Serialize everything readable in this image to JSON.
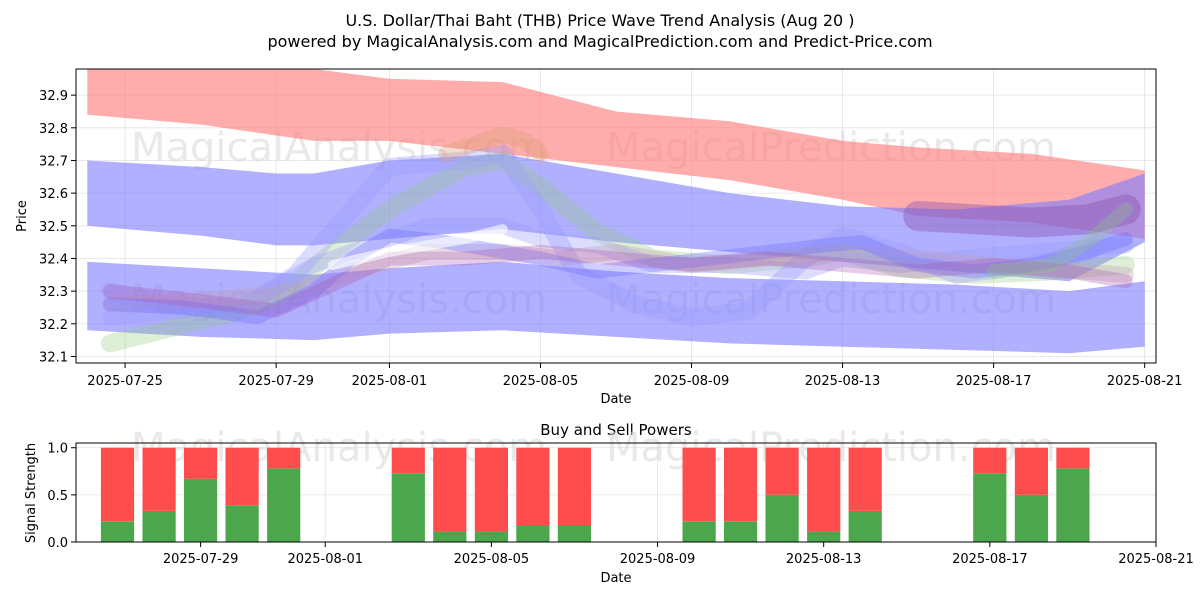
{
  "chart_data": [
    {
      "type": "area",
      "title": "U.S. Dollar/Thai Baht (THB) Price Wave Trend Analysis (Aug 20 )",
      "subtitle": "powered by MagicalAnalysis.com and MagicalPrediction.com and Predict-Price.com",
      "xlabel": "Date",
      "ylabel": "Price",
      "xlim": [
        -1.3,
        27.3
      ],
      "ylim": [
        32.08,
        32.98
      ],
      "x_origin_date": "2025-07-25",
      "xticks": [
        {
          "x": 0,
          "label": "2025-07-25"
        },
        {
          "x": 4,
          "label": "2025-07-29"
        },
        {
          "x": 7,
          "label": "2025-08-01"
        },
        {
          "x": 11,
          "label": "2025-08-05"
        },
        {
          "x": 15,
          "label": "2025-08-09"
        },
        {
          "x": 19,
          "label": "2025-08-13"
        },
        {
          "x": 23,
          "label": "2025-08-17"
        },
        {
          "x": 27,
          "label": "2025-08-21"
        }
      ],
      "yticks": [
        32.1,
        32.2,
        32.3,
        32.4,
        32.5,
        32.6,
        32.7,
        32.8,
        32.9
      ],
      "grid": true,
      "watermarks": [
        "MagicalAnalysis.com",
        "MagicalPrediction.com"
      ],
      "bands": [
        {
          "name": "upper-red-band",
          "color": "#ff7f7f",
          "opacity": 0.65,
          "x": [
            -1,
            2,
            5,
            7,
            10,
            13,
            16,
            19,
            21,
            24,
            27
          ],
          "lower": [
            32.84,
            32.81,
            32.76,
            32.76,
            32.72,
            32.68,
            32.64,
            32.58,
            32.53,
            32.51,
            32.46
          ],
          "upper": [
            32.98,
            32.98,
            32.98,
            32.95,
            32.94,
            32.85,
            32.82,
            32.76,
            32.74,
            32.72,
            32.67
          ]
        },
        {
          "name": "upper-blue-band",
          "color": "#7b7bff",
          "opacity": 0.6,
          "x": [
            -1,
            2,
            4,
            5,
            7,
            10,
            13,
            16,
            19,
            22,
            25,
            27
          ],
          "lower": [
            32.5,
            32.47,
            32.44,
            32.44,
            32.46,
            32.49,
            32.45,
            32.42,
            32.39,
            32.36,
            32.33,
            32.45
          ],
          "upper": [
            32.7,
            32.68,
            32.66,
            32.66,
            32.7,
            32.72,
            32.66,
            32.6,
            32.56,
            32.55,
            32.58,
            32.66
          ]
        },
        {
          "name": "lower-blue-band",
          "color": "#7b7bff",
          "opacity": 0.6,
          "x": [
            -1,
            2,
            5,
            7,
            10,
            13,
            16,
            19,
            22,
            25,
            27
          ],
          "lower": [
            32.18,
            32.16,
            32.15,
            32.17,
            32.18,
            32.16,
            32.14,
            32.13,
            32.12,
            32.11,
            32.13
          ],
          "upper": [
            32.39,
            32.37,
            32.35,
            32.37,
            32.39,
            32.36,
            32.34,
            32.33,
            32.32,
            32.3,
            32.33
          ]
        }
      ],
      "wave_lines": [
        {
          "color": "#90c978",
          "opacity": 0.3,
          "width": 18,
          "x": [
            -0.4,
            1,
            3,
            4,
            5.5,
            7,
            9,
            10,
            11,
            12.5,
            14,
            16,
            18,
            19,
            20.5,
            22.5,
            24.5,
            26.5
          ],
          "y": [
            32.14,
            32.18,
            32.24,
            32.28,
            32.42,
            32.55,
            32.68,
            32.7,
            32.62,
            32.48,
            32.4,
            32.38,
            32.4,
            32.42,
            32.37,
            32.35,
            32.36,
            32.38
          ]
        },
        {
          "color": "#9b9bff",
          "opacity": 0.35,
          "width": 18,
          "x": [
            -0.4,
            1,
            3,
            4.5,
            6,
            7,
            9,
            10,
            11,
            12,
            13.5,
            15,
            16.5,
            18,
            19,
            20.5,
            22,
            24,
            25.5,
            26.5
          ],
          "y": [
            32.3,
            32.26,
            32.24,
            32.35,
            32.55,
            32.68,
            32.7,
            32.72,
            32.55,
            32.35,
            32.26,
            32.22,
            32.24,
            32.4,
            32.47,
            32.42,
            32.35,
            32.38,
            32.42,
            32.55
          ]
        },
        {
          "color": "#9b9bff",
          "opacity": 0.35,
          "width": 16,
          "x": [
            -0.4,
            1.5,
            3.5,
            5,
            6.5,
            8,
            10,
            11,
            12.5,
            14,
            16,
            18,
            19,
            20.5,
            22,
            24,
            26.5
          ],
          "y": [
            32.22,
            32.24,
            32.28,
            32.38,
            32.44,
            32.5,
            32.5,
            32.46,
            32.44,
            32.38,
            32.38,
            32.36,
            32.4,
            32.38,
            32.4,
            32.42,
            32.44
          ]
        },
        {
          "color": "#c3a0b8",
          "opacity": 0.35,
          "width": 16,
          "x": [
            -0.4,
            2,
            4.5,
            6,
            8,
            10,
            11.5,
            13,
            15,
            17,
            19,
            21,
            23,
            26.5
          ],
          "y": [
            32.26,
            32.27,
            32.3,
            32.36,
            32.42,
            32.42,
            32.4,
            32.42,
            32.38,
            32.4,
            32.42,
            32.4,
            32.38,
            32.35
          ]
        },
        {
          "color": "#d9a070",
          "opacity": 0.35,
          "width": 16,
          "x": [
            8.5,
            9.5,
            10,
            10.6,
            11
          ],
          "y": [
            32.72,
            32.76,
            32.78,
            32.76,
            32.72
          ]
        },
        {
          "color": "#6f6fff",
          "opacity": 0.35,
          "width": 14,
          "x": [
            -0.4,
            1.5,
            3.5,
            5,
            6,
            7,
            8.5,
            10,
            11,
            12.5,
            14,
            15.5,
            17,
            18.5,
            19.5,
            21,
            22.5,
            24,
            25.5,
            26.5
          ],
          "y": [
            32.26,
            32.25,
            32.22,
            32.3,
            32.4,
            32.47,
            32.45,
            32.42,
            32.4,
            32.36,
            32.38,
            32.4,
            32.42,
            32.44,
            32.45,
            32.38,
            32.36,
            32.38,
            32.42,
            32.46
          ]
        },
        {
          "color": "#a855b0",
          "opacity": 0.3,
          "width": 14,
          "x": [
            -0.4,
            2,
            4,
            5.5,
            7,
            9,
            11,
            13,
            15,
            17,
            19,
            21,
            23,
            25,
            26.5
          ],
          "y": [
            32.3,
            32.27,
            32.24,
            32.32,
            32.4,
            32.4,
            32.42,
            32.4,
            32.38,
            32.4,
            32.38,
            32.36,
            32.38,
            32.36,
            32.33
          ]
        },
        {
          "color": "#ffffff",
          "opacity": 0.6,
          "width": 10,
          "x": [
            5.5,
            7,
            9,
            10
          ],
          "y": [
            32.38,
            32.42,
            32.46,
            32.49
          ]
        },
        {
          "color": "#8a4fb0",
          "opacity": 0.4,
          "width": 30,
          "x": [
            21,
            22.5,
            24,
            25.5,
            26.5
          ],
          "y": [
            32.53,
            32.52,
            32.51,
            32.52,
            32.55
          ]
        },
        {
          "color": "#90c978",
          "opacity": 0.3,
          "width": 14,
          "x": [
            23,
            24.5,
            25.5,
            26.5
          ],
          "y": [
            32.36,
            32.38,
            32.45,
            32.55
          ]
        }
      ]
    },
    {
      "type": "bar",
      "title": "Buy and Sell Powers",
      "xlabel": "Date",
      "ylabel": "Signal Strength",
      "ylim": [
        0,
        1.05
      ],
      "xlim": [
        -1.0,
        25.0
      ],
      "x_origin_date": "2025-07-27",
      "yticks": [
        0.0,
        0.5,
        1.0
      ],
      "xticks": [
        {
          "x": 2,
          "label": "2025-07-29"
        },
        {
          "x": 5,
          "label": "2025-08-01"
        },
        {
          "x": 9,
          "label": "2025-08-05"
        },
        {
          "x": 13,
          "label": "2025-08-09"
        },
        {
          "x": 17,
          "label": "2025-08-13"
        },
        {
          "x": 21,
          "label": "2025-08-17"
        },
        {
          "x": 25,
          "label": "2025-08-21"
        }
      ],
      "buy_color": "#4ca64c",
      "sell_color": "#ff4d4d",
      "categories": [
        "2025-07-27",
        "2025-07-28",
        "2025-07-29",
        "2025-07-30",
        "2025-07-31",
        "2025-08-03",
        "2025-08-04",
        "2025-08-05",
        "2025-08-06",
        "2025-08-07",
        "2025-08-10",
        "2025-08-11",
        "2025-08-12",
        "2025-08-13",
        "2025-08-14",
        "2025-08-17",
        "2025-08-18",
        "2025-08-19"
      ],
      "x": [
        0,
        1,
        2,
        3,
        4,
        7,
        8,
        9,
        10,
        11,
        14,
        15,
        16,
        17,
        18,
        21,
        22,
        23
      ],
      "series": [
        {
          "name": "Buy",
          "values": [
            0.22,
            0.33,
            0.67,
            0.39,
            0.78,
            0.73,
            0.11,
            0.11,
            0.17,
            0.17,
            0.22,
            0.22,
            0.5,
            0.11,
            0.33,
            0.73,
            0.5,
            0.78
          ]
        },
        {
          "name": "Sell",
          "values": [
            0.78,
            0.67,
            0.33,
            0.61,
            0.22,
            0.27,
            0.89,
            0.89,
            0.83,
            0.83,
            0.78,
            0.78,
            0.5,
            0.89,
            0.67,
            0.27,
            0.5,
            0.22
          ]
        }
      ]
    }
  ]
}
